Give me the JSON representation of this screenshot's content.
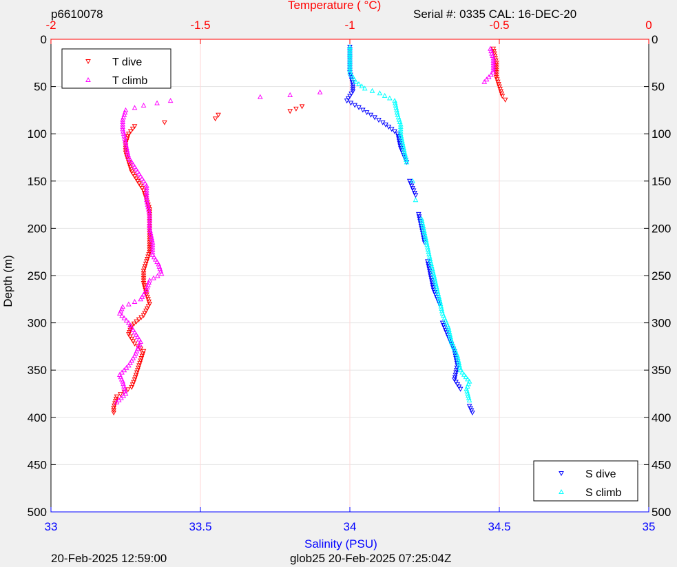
{
  "header": {
    "left_id": "p6610078",
    "serial": "Serial #: 0335  CAL: 16-DEC-20"
  },
  "footer": {
    "left_timestamp": "20-Feb-2025 12:59:00",
    "right_stamp": "glob25 20-Feb-2025 07:25:04Z"
  },
  "chart_data": {
    "type": "scatter",
    "top_axis": {
      "label": "Temperature (   °C)",
      "range": [
        -2,
        0
      ],
      "ticks": [
        "-2",
        "-1.5",
        "-1",
        "-0.5",
        "0"
      ],
      "color": "#ff0000"
    },
    "bottom_axis": {
      "label": "Salinity (PSU)",
      "range": [
        33,
        35
      ],
      "ticks": [
        "33",
        "33.5",
        "34",
        "34.5",
        "35"
      ],
      "color": "#0000ff"
    },
    "y_axis": {
      "label": "Depth (m)",
      "range": [
        0,
        500
      ],
      "reversed": true,
      "ticks": [
        "0",
        "50",
        "100",
        "150",
        "200",
        "250",
        "300",
        "350",
        "400",
        "450",
        "500"
      ]
    },
    "grid": true,
    "legends": [
      {
        "placement": "top-left",
        "entries": [
          {
            "name": "T dive",
            "color": "#ff0000",
            "marker": "triangle-down"
          },
          {
            "name": "T climb",
            "color": "#ff00ff",
            "marker": "triangle-up"
          }
        ]
      },
      {
        "placement": "bottom-right",
        "entries": [
          {
            "name": "S dive",
            "color": "#0000ff",
            "marker": "triangle-down"
          },
          {
            "name": "S climb",
            "color": "#00ffff",
            "marker": "triangle-up"
          }
        ]
      }
    ],
    "series": [
      {
        "name": "T dive",
        "axis": "top",
        "color": "#ff0000",
        "marker": "triangle-down",
        "points": [
          [
            -0.52,
            10
          ],
          [
            -0.51,
            25
          ],
          [
            -0.51,
            40
          ],
          [
            -0.5,
            50
          ],
          [
            -0.49,
            60
          ],
          [
            -0.48,
            64
          ],
          [
            -1.16,
            71
          ],
          [
            -1.2,
            76
          ],
          [
            -1.44,
            80
          ],
          [
            -1.45,
            84
          ],
          [
            -1.62,
            88
          ],
          [
            -1.72,
            92
          ],
          [
            -1.74,
            100
          ],
          [
            -1.75,
            110
          ],
          [
            -1.75,
            120
          ],
          [
            -1.74,
            130
          ],
          [
            -1.73,
            140
          ],
          [
            -1.71,
            150
          ],
          [
            -1.69,
            160
          ],
          [
            -1.68,
            170
          ],
          [
            -1.67,
            180
          ],
          [
            -1.67,
            195
          ],
          [
            -1.67,
            210
          ],
          [
            -1.67,
            225
          ],
          [
            -1.68,
            235
          ],
          [
            -1.69,
            245
          ],
          [
            -1.69,
            258
          ],
          [
            -1.68,
            270
          ],
          [
            -1.67,
            280
          ],
          [
            -1.69,
            292
          ],
          [
            -1.73,
            303
          ],
          [
            -1.74,
            312
          ],
          [
            -1.72,
            322
          ],
          [
            -1.69,
            330
          ],
          [
            -1.7,
            340
          ],
          [
            -1.71,
            350
          ],
          [
            -1.72,
            360
          ],
          [
            -1.73,
            368
          ],
          [
            -1.78,
            378
          ],
          [
            -1.79,
            390
          ],
          [
            -1.79,
            395
          ]
        ]
      },
      {
        "name": "T climb",
        "axis": "top",
        "color": "#ff00ff",
        "marker": "triangle-up",
        "points": [
          [
            -1.78,
            384
          ],
          [
            -1.75,
            375
          ],
          [
            -1.76,
            362
          ],
          [
            -1.77,
            355
          ],
          [
            -1.74,
            345
          ],
          [
            -1.72,
            335
          ],
          [
            -1.7,
            320
          ],
          [
            -1.72,
            310
          ],
          [
            -1.74,
            300
          ],
          [
            -1.77,
            290
          ],
          [
            -1.76,
            283
          ],
          [
            -1.7,
            275
          ],
          [
            -1.68,
            265
          ],
          [
            -1.67,
            255
          ],
          [
            -1.63,
            248
          ],
          [
            -1.64,
            238
          ],
          [
            -1.66,
            228
          ],
          [
            -1.66,
            215
          ],
          [
            -1.67,
            200
          ],
          [
            -1.67,
            185
          ],
          [
            -1.68,
            170
          ],
          [
            -1.68,
            155
          ],
          [
            -1.7,
            145
          ],
          [
            -1.72,
            135
          ],
          [
            -1.74,
            125
          ],
          [
            -1.75,
            110
          ],
          [
            -1.76,
            95
          ],
          [
            -1.76,
            85
          ],
          [
            -1.75,
            75
          ],
          [
            -1.69,
            70
          ],
          [
            -1.6,
            65
          ],
          [
            -1.3,
            61
          ],
          [
            -1.2,
            59
          ],
          [
            -1.1,
            56
          ],
          [
            -0.55,
            45
          ],
          [
            -0.52,
            35
          ],
          [
            -0.52,
            20
          ],
          [
            -0.53,
            10
          ]
        ]
      },
      {
        "name": "S dive",
        "axis": "bottom",
        "color": "#0000ff",
        "marker": "triangle-down",
        "points": [
          [
            34.0,
            8
          ],
          [
            34.0,
            20
          ],
          [
            34.0,
            35
          ],
          [
            34.01,
            48
          ],
          [
            34.01,
            55
          ],
          [
            33.99,
            65
          ],
          [
            34.03,
            72
          ],
          [
            34.07,
            80
          ],
          [
            34.11,
            88
          ],
          [
            34.14,
            95
          ],
          [
            34.16,
            100
          ],
          [
            34.17,
            115
          ],
          [
            34.19,
            130
          ],
          [
            34.2,
            150
          ],
          [
            34.22,
            165
          ],
          [
            34.23,
            185
          ],
          [
            34.24,
            200
          ],
          [
            34.25,
            215
          ],
          [
            34.26,
            235
          ],
          [
            34.27,
            250
          ],
          [
            34.28,
            265
          ],
          [
            34.3,
            280
          ],
          [
            34.31,
            300
          ],
          [
            34.33,
            315
          ],
          [
            34.35,
            330
          ],
          [
            34.36,
            345
          ],
          [
            34.35,
            360
          ],
          [
            34.37,
            370
          ],
          [
            34.4,
            388
          ],
          [
            34.41,
            395
          ]
        ]
      },
      {
        "name": "S climb",
        "axis": "bottom",
        "color": "#00ffff",
        "marker": "triangle-up",
        "points": [
          [
            34.4,
            382
          ],
          [
            34.39,
            370
          ],
          [
            34.4,
            362
          ],
          [
            34.37,
            350
          ],
          [
            34.36,
            335
          ],
          [
            34.34,
            320
          ],
          [
            34.33,
            305
          ],
          [
            34.31,
            290
          ],
          [
            34.3,
            275
          ],
          [
            34.29,
            262
          ],
          [
            34.28,
            248
          ],
          [
            34.27,
            235
          ],
          [
            34.26,
            220
          ],
          [
            34.25,
            205
          ],
          [
            34.24,
            190
          ],
          [
            34.22,
            170
          ],
          [
            34.21,
            150
          ],
          [
            34.19,
            130
          ],
          [
            34.18,
            115
          ],
          [
            34.17,
            100
          ],
          [
            34.17,
            90
          ],
          [
            34.16,
            80
          ],
          [
            34.15,
            65
          ],
          [
            34.1,
            57
          ],
          [
            34.05,
            52
          ],
          [
            34.02,
            45
          ],
          [
            34.0,
            35
          ],
          [
            34.0,
            20
          ],
          [
            34.0,
            8
          ]
        ]
      }
    ]
  }
}
